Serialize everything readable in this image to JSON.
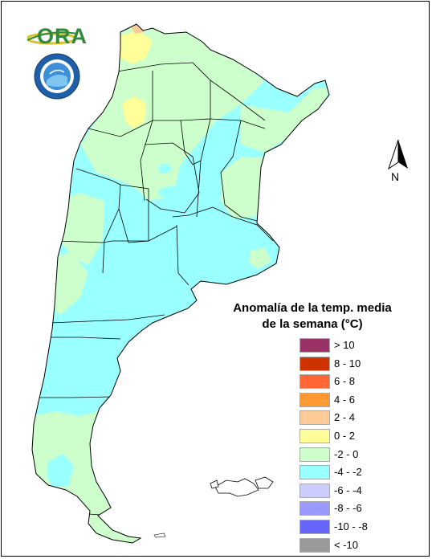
{
  "legend": {
    "title_line1": "Anomalía de la temp. media",
    "title_line2": "de la semana (°C)",
    "classes": [
      {
        "label": "> 10",
        "color": "#993366"
      },
      {
        "label": "8 - 10",
        "color": "#cc3300"
      },
      {
        "label": "6 - 8",
        "color": "#ff6633"
      },
      {
        "label": "4 - 6",
        "color": "#ff9933"
      },
      {
        "label": "2 - 4",
        "color": "#ffcc99"
      },
      {
        "label": "0 - 2",
        "color": "#ffff99"
      },
      {
        "label": "-2 - 0",
        "color": "#ccffcc"
      },
      {
        "label": "-4 - -2",
        "color": "#99ffff"
      },
      {
        "label": "-6 - -4",
        "color": "#ccccff"
      },
      {
        "label": "-8 - -6",
        "color": "#9999ff"
      },
      {
        "label": "-10 - -8",
        "color": "#6666ff"
      },
      {
        "label": "< -10",
        "color": "#999999"
      }
    ]
  },
  "north_arrow": {
    "label": "N",
    "icon": "north-arrow-icon"
  },
  "logo": {
    "text": "ORA",
    "icon": "ora-logo-icon"
  },
  "seal": {
    "icon": "meteorological-service-seal-icon"
  },
  "map": {
    "region": "Argentina",
    "predominant_class": "-4 - -2",
    "secondary_class": "-2 - 0",
    "minor_class": "0 - 2"
  }
}
